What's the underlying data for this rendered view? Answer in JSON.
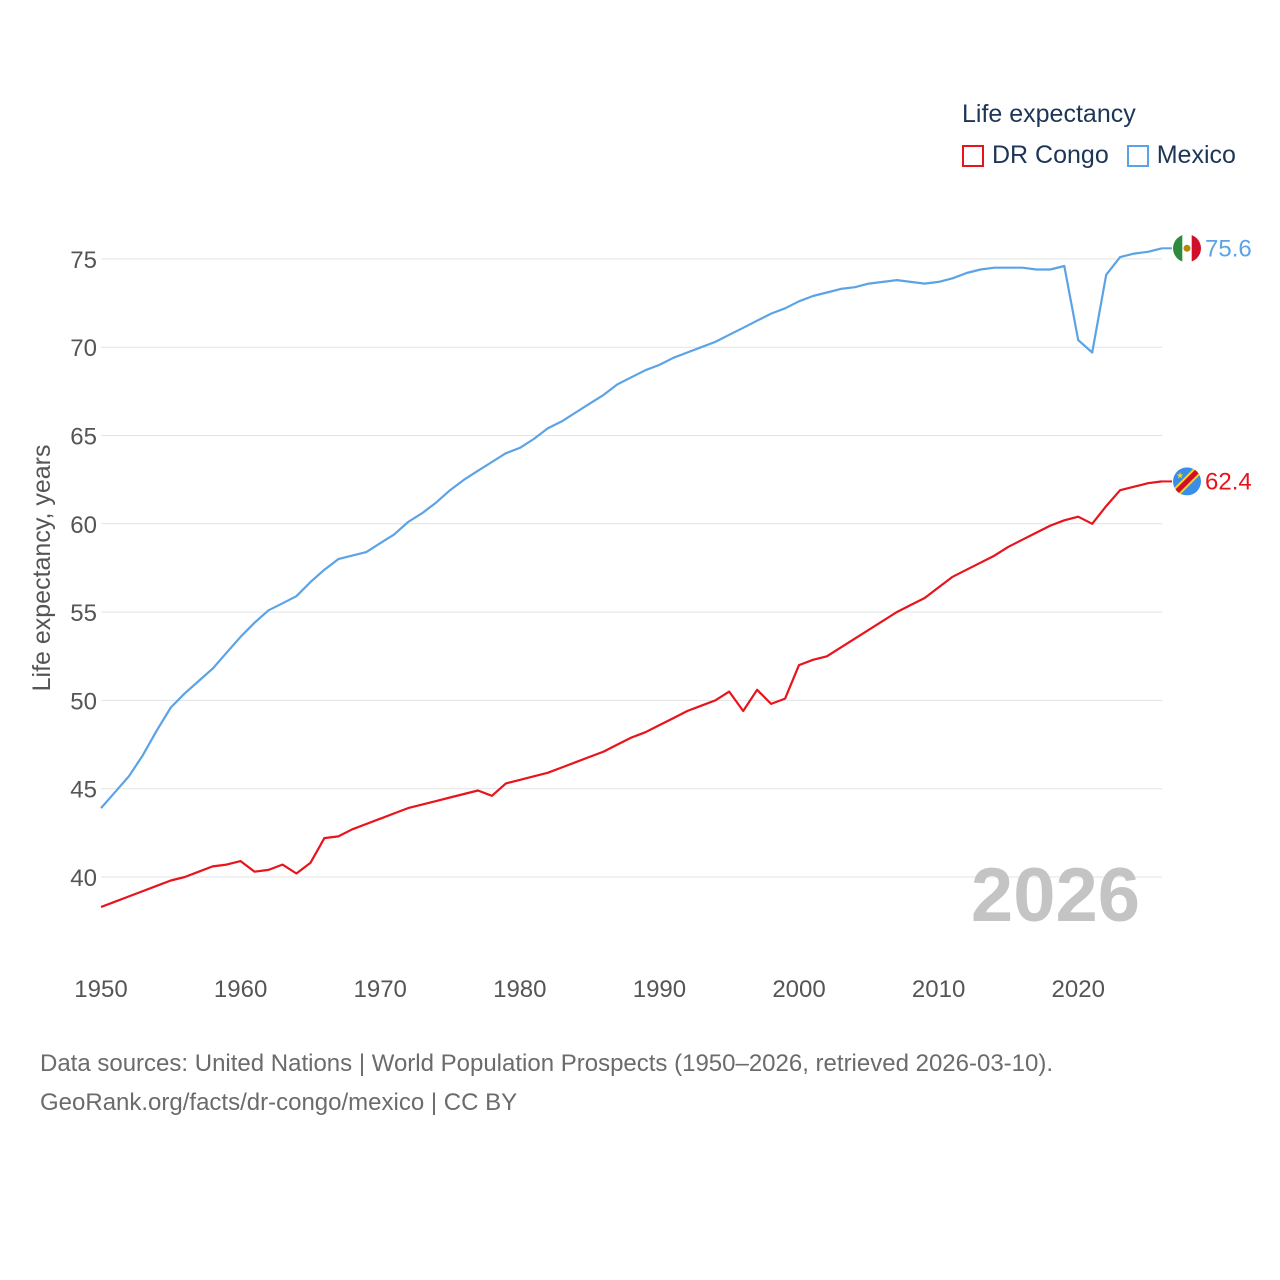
{
  "legend": {
    "title": "Life expectancy",
    "series": [
      {
        "name": "DR Congo",
        "color": "#e8131b"
      },
      {
        "name": "Mexico",
        "color": "#5ba3e6"
      }
    ]
  },
  "current_year": "2026",
  "footer": {
    "sources": "Data sources: United Nations | World Population Prospects (1950–2026, retrieved 2026-03-10).",
    "attribution": "GeoRank.org/facts/dr-congo/mexico | CC BY"
  },
  "chart_data": {
    "type": "line",
    "title": "Life expectancy",
    "xlabel": "",
    "ylabel": "Life expectancy, years",
    "xlim": [
      1950,
      2026
    ],
    "ylim": [
      36.5,
      79
    ],
    "x_ticks": [
      1950,
      1960,
      1970,
      1980,
      1990,
      2000,
      2010,
      2020
    ],
    "y_ticks": [
      40,
      45,
      50,
      55,
      60,
      65,
      70,
      75
    ],
    "grid": true,
    "legend_position": "top-right",
    "series": [
      {
        "name": "DR Congo",
        "color": "#e8131b",
        "end_label": "62.4",
        "flag": "dr-congo-flag",
        "points": [
          [
            1950,
            38.3
          ],
          [
            1951,
            38.6
          ],
          [
            1952,
            38.9
          ],
          [
            1953,
            39.2
          ],
          [
            1954,
            39.5
          ],
          [
            1955,
            39.8
          ],
          [
            1956,
            40.0
          ],
          [
            1957,
            40.3
          ],
          [
            1958,
            40.6
          ],
          [
            1959,
            40.7
          ],
          [
            1960,
            40.9
          ],
          [
            1961,
            40.3
          ],
          [
            1962,
            40.4
          ],
          [
            1963,
            40.7
          ],
          [
            1964,
            40.2
          ],
          [
            1965,
            40.8
          ],
          [
            1966,
            42.2
          ],
          [
            1967,
            42.3
          ],
          [
            1968,
            42.7
          ],
          [
            1969,
            43.0
          ],
          [
            1970,
            43.3
          ],
          [
            1971,
            43.6
          ],
          [
            1972,
            43.9
          ],
          [
            1973,
            44.1
          ],
          [
            1974,
            44.3
          ],
          [
            1975,
            44.5
          ],
          [
            1976,
            44.7
          ],
          [
            1977,
            44.9
          ],
          [
            1978,
            44.6
          ],
          [
            1979,
            45.3
          ],
          [
            1980,
            45.5
          ],
          [
            1981,
            45.7
          ],
          [
            1982,
            45.9
          ],
          [
            1983,
            46.2
          ],
          [
            1984,
            46.5
          ],
          [
            1985,
            46.8
          ],
          [
            1986,
            47.1
          ],
          [
            1987,
            47.5
          ],
          [
            1988,
            47.9
          ],
          [
            1989,
            48.2
          ],
          [
            1990,
            48.6
          ],
          [
            1991,
            49.0
          ],
          [
            1992,
            49.4
          ],
          [
            1993,
            49.7
          ],
          [
            1994,
            50.0
          ],
          [
            1995,
            50.5
          ],
          [
            1996,
            49.4
          ],
          [
            1997,
            50.6
          ],
          [
            1998,
            49.8
          ],
          [
            1999,
            50.1
          ],
          [
            2000,
            52.0
          ],
          [
            2001,
            52.3
          ],
          [
            2002,
            52.5
          ],
          [
            2003,
            53.0
          ],
          [
            2004,
            53.5
          ],
          [
            2005,
            54.0
          ],
          [
            2006,
            54.5
          ],
          [
            2007,
            55.0
          ],
          [
            2008,
            55.4
          ],
          [
            2009,
            55.8
          ],
          [
            2010,
            56.4
          ],
          [
            2011,
            57.0
          ],
          [
            2012,
            57.4
          ],
          [
            2013,
            57.8
          ],
          [
            2014,
            58.2
          ],
          [
            2015,
            58.7
          ],
          [
            2016,
            59.1
          ],
          [
            2017,
            59.5
          ],
          [
            2018,
            59.9
          ],
          [
            2019,
            60.2
          ],
          [
            2020,
            60.4
          ],
          [
            2021,
            60.0
          ],
          [
            2022,
            61.0
          ],
          [
            2023,
            61.9
          ],
          [
            2024,
            62.1
          ],
          [
            2025,
            62.3
          ],
          [
            2026,
            62.4
          ]
        ]
      },
      {
        "name": "Mexico",
        "color": "#5ba3e6",
        "end_label": "75.6",
        "flag": "mexico-flag",
        "points": [
          [
            1950,
            43.9
          ],
          [
            1951,
            44.8
          ],
          [
            1952,
            45.7
          ],
          [
            1953,
            46.9
          ],
          [
            1954,
            48.3
          ],
          [
            1955,
            49.6
          ],
          [
            1956,
            50.4
          ],
          [
            1957,
            51.1
          ],
          [
            1958,
            51.8
          ],
          [
            1959,
            52.7
          ],
          [
            1960,
            53.6
          ],
          [
            1961,
            54.4
          ],
          [
            1962,
            55.1
          ],
          [
            1963,
            55.5
          ],
          [
            1964,
            55.9
          ],
          [
            1965,
            56.7
          ],
          [
            1966,
            57.4
          ],
          [
            1967,
            58.0
          ],
          [
            1968,
            58.2
          ],
          [
            1969,
            58.4
          ],
          [
            1970,
            58.9
          ],
          [
            1971,
            59.4
          ],
          [
            1972,
            60.1
          ],
          [
            1973,
            60.6
          ],
          [
            1974,
            61.2
          ],
          [
            1975,
            61.9
          ],
          [
            1976,
            62.5
          ],
          [
            1977,
            63.0
          ],
          [
            1978,
            63.5
          ],
          [
            1979,
            64.0
          ],
          [
            1980,
            64.3
          ],
          [
            1981,
            64.8
          ],
          [
            1982,
            65.4
          ],
          [
            1983,
            65.8
          ],
          [
            1984,
            66.3
          ],
          [
            1985,
            66.8
          ],
          [
            1986,
            67.3
          ],
          [
            1987,
            67.9
          ],
          [
            1988,
            68.3
          ],
          [
            1989,
            68.7
          ],
          [
            1990,
            69.0
          ],
          [
            1991,
            69.4
          ],
          [
            1992,
            69.7
          ],
          [
            1993,
            70.0
          ],
          [
            1994,
            70.3
          ],
          [
            1995,
            70.7
          ],
          [
            1996,
            71.1
          ],
          [
            1997,
            71.5
          ],
          [
            1998,
            71.9
          ],
          [
            1999,
            72.2
          ],
          [
            2000,
            72.6
          ],
          [
            2001,
            72.9
          ],
          [
            2002,
            73.1
          ],
          [
            2003,
            73.3
          ],
          [
            2004,
            73.4
          ],
          [
            2005,
            73.6
          ],
          [
            2006,
            73.7
          ],
          [
            2007,
            73.8
          ],
          [
            2008,
            73.7
          ],
          [
            2009,
            73.6
          ],
          [
            2010,
            73.7
          ],
          [
            2011,
            73.9
          ],
          [
            2012,
            74.2
          ],
          [
            2013,
            74.4
          ],
          [
            2014,
            74.5
          ],
          [
            2015,
            74.5
          ],
          [
            2016,
            74.5
          ],
          [
            2017,
            74.4
          ],
          [
            2018,
            74.4
          ],
          [
            2019,
            74.6
          ],
          [
            2020,
            70.4
          ],
          [
            2021,
            69.7
          ],
          [
            2022,
            74.1
          ],
          [
            2023,
            75.1
          ],
          [
            2024,
            75.3
          ],
          [
            2025,
            75.4
          ],
          [
            2026,
            75.6
          ]
        ]
      }
    ]
  }
}
